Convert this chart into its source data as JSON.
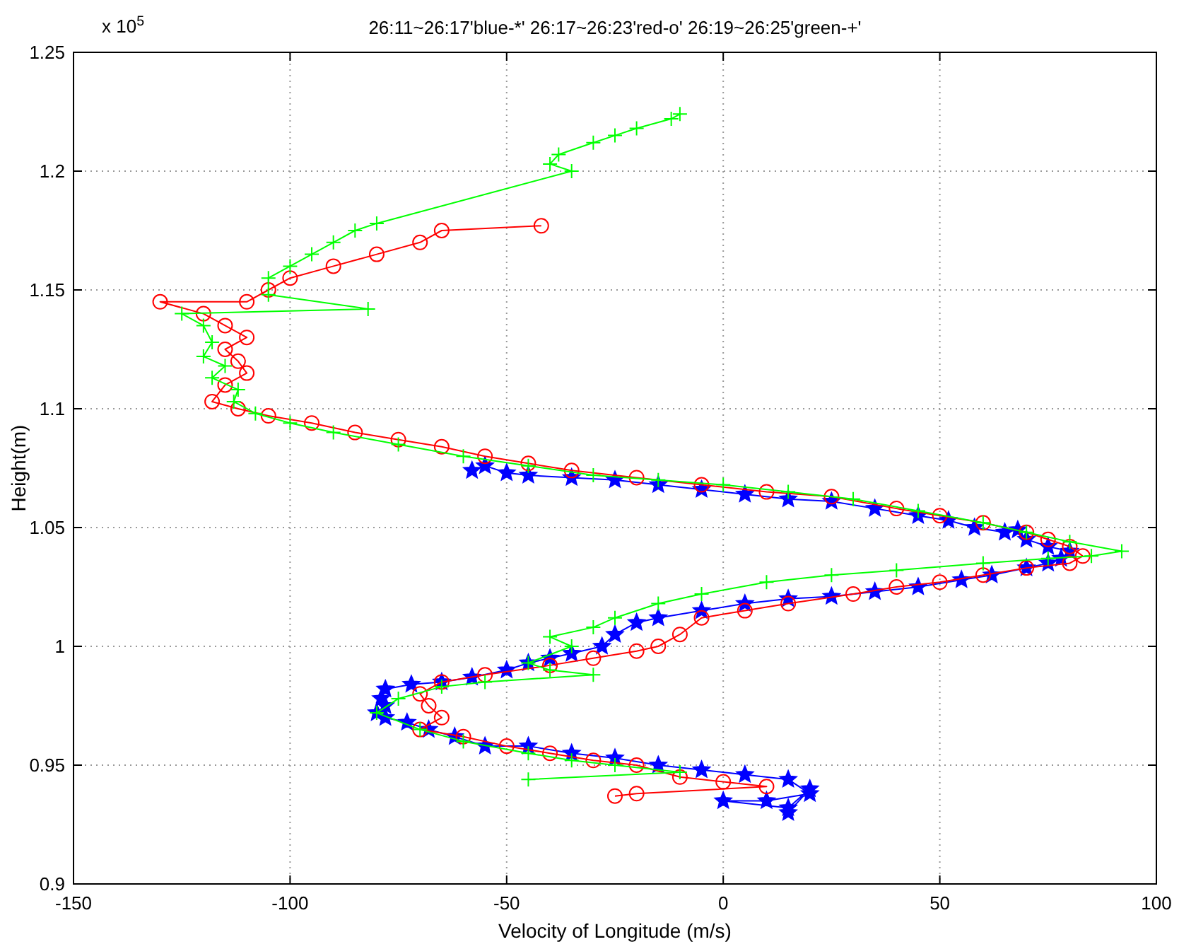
{
  "chart_data": {
    "type": "line",
    "title": "26:11~26:17'blue-*'  26:17~26:23'red-o'  26:19~26:25'green-+'",
    "xlabel": "Velocity of Longitude (m/s)",
    "ylabel": "Height(m)",
    "annotations": [
      "x 10$^{5}$"
    ],
    "xlim": [
      -150,
      100
    ],
    "xticks": [
      -150,
      -100,
      -50,
      0,
      50,
      100
    ],
    "ylim": [
      0.9,
      1.25
    ],
    "yticks": [
      0.9,
      0.95,
      1,
      1.05,
      1.1,
      1.15,
      1.2,
      1.25
    ],
    "grid": true,
    "line_style": "solid",
    "series": [
      {
        "color": "#0000ff",
        "marker": "star",
        "x": [
          -58,
          -55,
          -50,
          -45,
          -35,
          -25,
          -15,
          -5,
          5,
          15,
          25,
          35,
          45,
          52,
          58,
          65,
          68,
          70,
          75,
          80,
          78,
          75,
          70,
          62,
          55,
          45,
          35,
          25,
          15,
          5,
          -5,
          -15,
          -20,
          -25,
          -28,
          -35,
          -40,
          -45,
          -50,
          -58,
          -65,
          -72,
          -78,
          -79,
          -78,
          -80,
          -78,
          -73,
          -68,
          -62,
          -55,
          -45,
          -35,
          -25,
          -15,
          -5,
          5,
          15,
          20,
          10,
          0,
          15,
          20,
          15
        ],
        "values": [
          1.074,
          1.076,
          1.073,
          1.072,
          1.071,
          1.07,
          1.068,
          1.066,
          1.064,
          1.062,
          1.061,
          1.058,
          1.055,
          1.053,
          1.05,
          1.048,
          1.049,
          1.045,
          1.042,
          1.04,
          1.037,
          1.035,
          1.033,
          1.03,
          1.028,
          1.025,
          1.023,
          1.021,
          1.02,
          1.018,
          1.015,
          1.012,
          1.01,
          1.005,
          1,
          0.997,
          0.995,
          0.993,
          0.99,
          0.987,
          0.985,
          0.984,
          0.982,
          0.978,
          0.975,
          0.972,
          0.97,
          0.968,
          0.965,
          0.962,
          0.958,
          0.958,
          0.955,
          0.953,
          0.95,
          0.948,
          0.946,
          0.944,
          0.938,
          0.935,
          0.935,
          0.932,
          0.94,
          0.93
        ]
      },
      {
        "color": "#ff0000",
        "marker": "circle",
        "x": [
          -42,
          -65,
          -70,
          -80,
          -90,
          -100,
          -105,
          -110,
          -130,
          -120,
          -115,
          -110,
          -115,
          -112,
          -110,
          -115,
          -118,
          -112,
          -105,
          -95,
          -85,
          -75,
          -65,
          -55,
          -45,
          -35,
          -20,
          -5,
          10,
          25,
          40,
          50,
          60,
          70,
          75,
          80,
          83,
          80,
          70,
          60,
          50,
          40,
          30,
          15,
          5,
          -5,
          -10,
          -15,
          -20,
          -30,
          -40,
          -55,
          -65,
          -70,
          -68,
          -65,
          -70,
          -60,
          -50,
          -40,
          -30,
          -20,
          -10,
          0,
          10,
          -20,
          -25
        ],
        "values": [
          1.177,
          1.175,
          1.17,
          1.165,
          1.16,
          1.155,
          1.15,
          1.145,
          1.145,
          1.14,
          1.135,
          1.13,
          1.125,
          1.12,
          1.115,
          1.11,
          1.103,
          1.1,
          1.097,
          1.094,
          1.09,
          1.087,
          1.084,
          1.08,
          1.077,
          1.074,
          1.071,
          1.068,
          1.065,
          1.063,
          1.058,
          1.055,
          1.052,
          1.048,
          1.045,
          1.042,
          1.038,
          1.035,
          1.033,
          1.03,
          1.027,
          1.025,
          1.022,
          1.018,
          1.015,
          1.012,
          1.005,
          1,
          0.998,
          0.995,
          0.992,
          0.988,
          0.985,
          0.98,
          0.975,
          0.97,
          0.965,
          0.962,
          0.958,
          0.955,
          0.952,
          0.95,
          0.945,
          0.943,
          0.941,
          0.938,
          0.937
        ]
      },
      {
        "color": "#00ff00",
        "marker": "cross",
        "x": [
          -10,
          -12,
          -20,
          -25,
          -30,
          -38,
          -40,
          -35,
          -80,
          -85,
          -90,
          -95,
          -100,
          -105,
          -105,
          -82,
          -125,
          -120,
          -118,
          -120,
          -115,
          -118,
          -112,
          -113,
          -108,
          -100,
          -90,
          -75,
          -60,
          -45,
          -30,
          -15,
          0,
          15,
          30,
          45,
          60,
          70,
          80,
          92,
          85,
          75,
          60,
          40,
          25,
          10,
          -5,
          -15,
          -25,
          -30,
          -40,
          -35,
          -45,
          -40,
          -30,
          -55,
          -65,
          -75,
          -80,
          -70,
          -60,
          -45,
          -35,
          -25,
          -10,
          -45
        ],
        "values": [
          1.224,
          1.222,
          1.218,
          1.215,
          1.212,
          1.207,
          1.203,
          1.2,
          1.178,
          1.175,
          1.17,
          1.165,
          1.16,
          1.155,
          1.148,
          1.142,
          1.14,
          1.135,
          1.128,
          1.122,
          1.118,
          1.113,
          1.108,
          1.103,
          1.098,
          1.094,
          1.09,
          1.085,
          1.08,
          1.076,
          1.072,
          1.07,
          1.068,
          1.065,
          1.062,
          1.057,
          1.052,
          1.048,
          1.044,
          1.04,
          1.038,
          1.037,
          1.035,
          1.032,
          1.03,
          1.027,
          1.022,
          1.018,
          1.012,
          1.008,
          1.004,
          1,
          0.993,
          0.99,
          0.988,
          0.985,
          0.983,
          0.978,
          0.972,
          0.965,
          0.96,
          0.955,
          0.952,
          0.95,
          0.947,
          0.944
        ]
      }
    ]
  }
}
